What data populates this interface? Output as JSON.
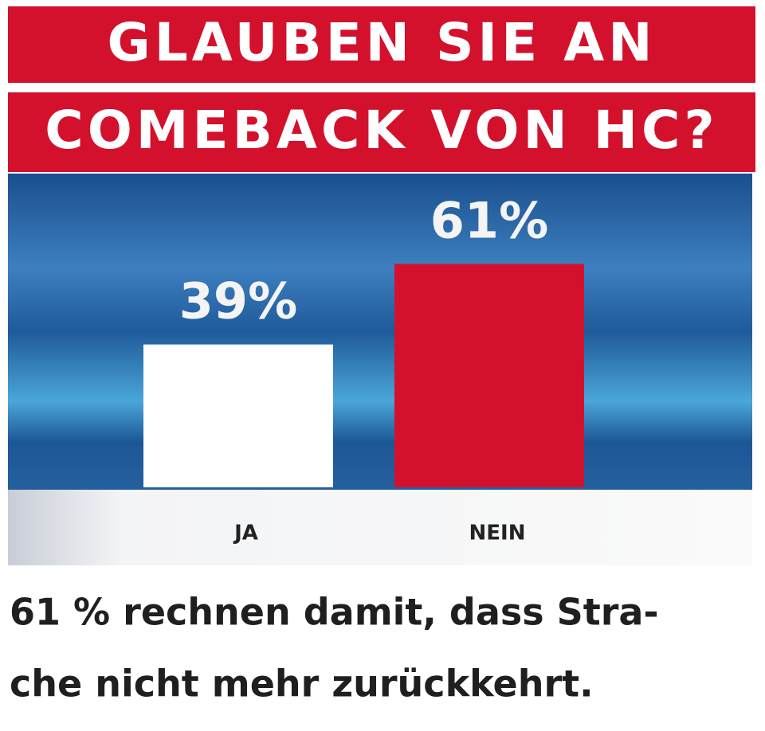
{
  "chart_data": {
    "type": "bar",
    "title": [
      "GLAUBEN SIE AN",
      "COMEBACK VON HC?"
    ],
    "categories": [
      "JA",
      "NEIN"
    ],
    "values": [
      39,
      61
    ],
    "value_labels": [
      "39%",
      "61%"
    ],
    "colors": [
      "#ffffff",
      "#d3112c"
    ],
    "caption": [
      "61 % rechnen damit, dass Stra-",
      "che nicht mehr zurückkehrt."
    ]
  }
}
